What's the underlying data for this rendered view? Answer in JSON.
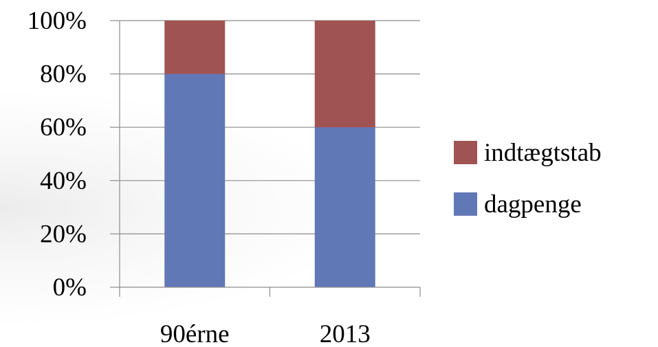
{
  "chart_data": {
    "type": "bar",
    "stacked": true,
    "percent": true,
    "categories": [
      "90érne",
      "2013"
    ],
    "series": [
      {
        "name": "dagpenge",
        "values": [
          80,
          60
        ],
        "color": "#6178B6"
      },
      {
        "name": "indtægtstab",
        "values": [
          20,
          40
        ],
        "color": "#A05353"
      }
    ],
    "ylim": [
      0,
      100
    ],
    "yticks": [
      0,
      20,
      40,
      60,
      80,
      100
    ],
    "ytick_labels": [
      "0%",
      "20%",
      "40%",
      "60%",
      "80%",
      "100%"
    ],
    "grid": true,
    "legend_position": "right",
    "legend_order": [
      "indtægtstab",
      "dagpenge"
    ],
    "title": "",
    "xlabel": "",
    "ylabel": ""
  }
}
